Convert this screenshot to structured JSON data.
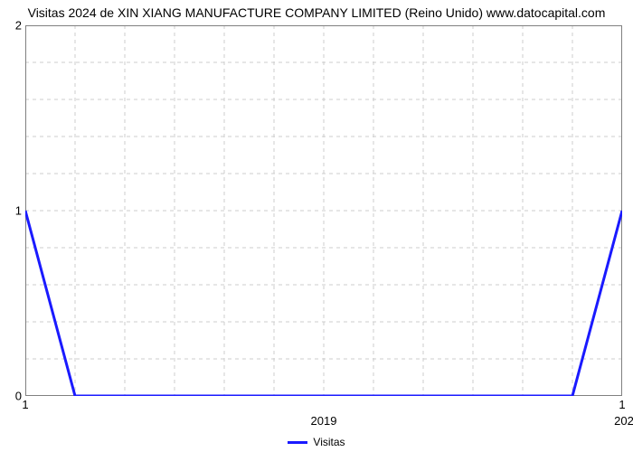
{
  "chart": {
    "type": "line",
    "title": "Visitas 2024 de XIN XIANG MANUFACTURE COMPANY LIMITED (Reino Unido) www.datocapital.com",
    "title_fontsize": 14,
    "background_color": "#ffffff",
    "plot_border_color": "#808080",
    "plot_border_width": 1,
    "grid_color": "#cccccc",
    "grid_dash": "4,4",
    "font_family": "Arial, Helvetica, sans-serif",
    "yaxis": {
      "min": 0,
      "max": 2,
      "major_ticks": [
        0,
        1,
        2
      ],
      "minor_count_between": 4,
      "label_fontsize": 13,
      "label_color": "#000000"
    },
    "xaxis": {
      "domain_points": 13,
      "labels_row1": {
        "0": "1",
        "12": "1"
      },
      "labels_row2": {
        "6": "2019",
        "12": "202"
      },
      "label_fontsize": 13,
      "label_color": "#000000",
      "tick_color": "#808080"
    },
    "series": [
      {
        "name": "Visitas",
        "color": "#1a1aff",
        "line_width": 3,
        "points": [
          {
            "i": 0,
            "v": 1
          },
          {
            "i": 1,
            "v": 0
          },
          {
            "i": 2,
            "v": 0
          },
          {
            "i": 3,
            "v": 0
          },
          {
            "i": 4,
            "v": 0
          },
          {
            "i": 5,
            "v": 0
          },
          {
            "i": 6,
            "v": 0
          },
          {
            "i": 7,
            "v": 0
          },
          {
            "i": 8,
            "v": 0
          },
          {
            "i": 9,
            "v": 0
          },
          {
            "i": 10,
            "v": 0
          },
          {
            "i": 11,
            "v": 0
          },
          {
            "i": 12,
            "v": 1
          }
        ]
      }
    ],
    "legend": {
      "label": "Visitas",
      "fontsize": 12,
      "swatch_color": "#1a1aff"
    }
  }
}
